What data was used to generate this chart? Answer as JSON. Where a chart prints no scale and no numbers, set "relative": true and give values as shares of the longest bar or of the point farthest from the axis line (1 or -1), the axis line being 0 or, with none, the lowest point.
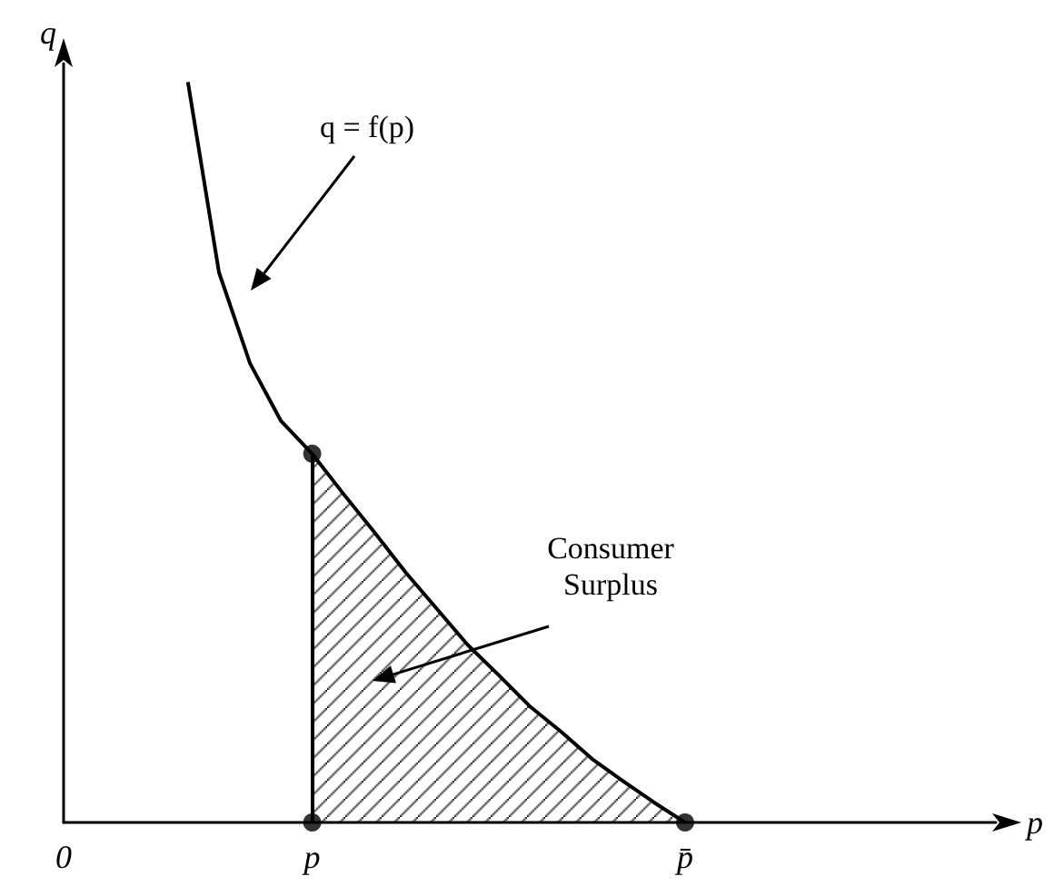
{
  "chart_data": {
    "type": "line",
    "relative": true,
    "xlabel": "p",
    "ylabel": "q",
    "categories": [
      "0",
      null,
      null,
      null,
      null,
      null,
      null,
      null,
      "p",
      null,
      null,
      null,
      null,
      null,
      null,
      null,
      null,
      null,
      null,
      null,
      "p̄",
      null,
      null,
      null,
      null,
      null,
      null,
      null,
      null,
      null,
      null
    ],
    "series": [
      {
        "color": "#000000",
        "values": [
          null,
          null,
          null,
          null,
          1.0,
          0.743,
          0.62,
          0.542,
          0.498,
          0.444,
          0.392,
          0.338,
          0.289,
          0.24,
          0.199,
          0.157,
          0.123,
          0.086,
          0.056,
          0.027,
          0,
          null,
          null,
          null,
          null,
          null,
          null,
          null,
          null,
          null,
          null
        ]
      },
      {
        "type": "area",
        "color": "#000000",
        "values": [
          null,
          null,
          null,
          null,
          null,
          null,
          null,
          null,
          0.498,
          0.444,
          0.392,
          0.338,
          0.289,
          0.24,
          0.199,
          0.157,
          0.123,
          0.086,
          0.056,
          0.027,
          0,
          null,
          null,
          null,
          null,
          null,
          null,
          null,
          null,
          null,
          null
        ]
      },
      {
        "type": "scatter",
        "color": "#000000",
        "marker": "circle",
        "values": [
          null,
          null,
          null,
          null,
          null,
          null,
          null,
          null,
          0.498,
          null,
          null,
          null,
          null,
          null,
          null,
          null,
          null,
          null,
          null,
          null,
          null,
          null,
          null,
          null,
          null,
          null,
          null,
          null,
          null,
          null,
          null
        ]
      },
      {
        "type": "scatter",
        "color": "#000000",
        "marker": "circle",
        "values": [
          null,
          null,
          null,
          null,
          null,
          null,
          null,
          null,
          0,
          null,
          null,
          null,
          null,
          null,
          null,
          null,
          null,
          null,
          null,
          null,
          0,
          null,
          null,
          null,
          null,
          null,
          null,
          null,
          null,
          null,
          null
        ]
      }
    ],
    "annotations": [
      "q = f(p)",
      "Consumer\nSurplus"
    ],
    "grid": false
  }
}
